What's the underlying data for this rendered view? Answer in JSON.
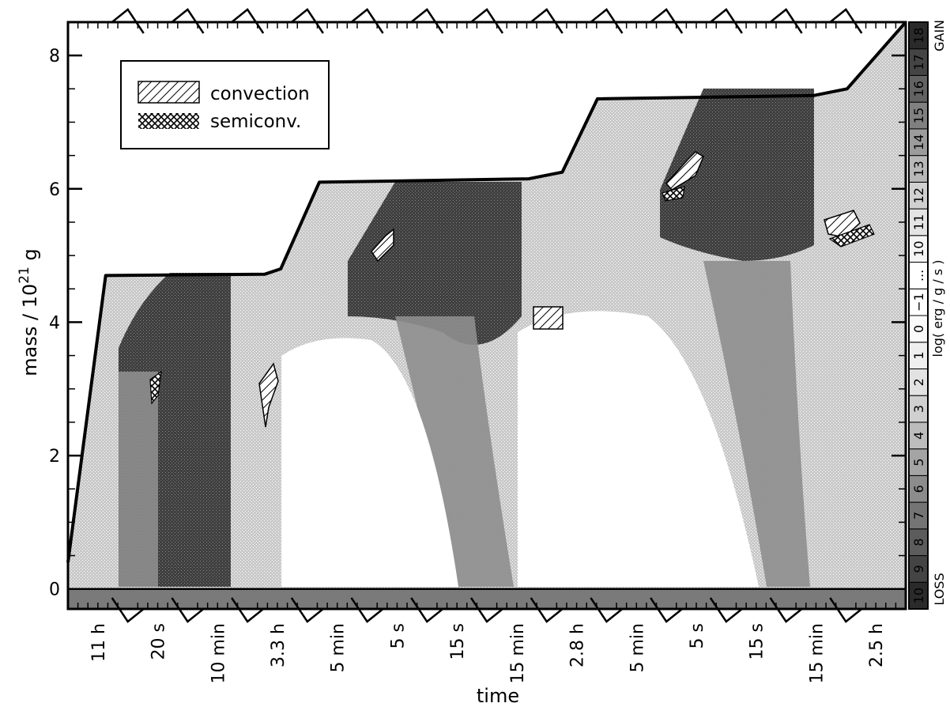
{
  "chart_data": {
    "type": "heatmap",
    "title": "",
    "xlabel": "time",
    "ylabel": "mass / 10",
    "ylabel_exponent": "21",
    "ylabel_unit": "g",
    "ylim": [
      -0.3,
      8.5
    ],
    "y_ticks": [
      "0",
      "2",
      "4",
      "6",
      "8"
    ],
    "y_tick_values": [
      0,
      2,
      4,
      6,
      8
    ],
    "x_segment_labels": [
      "11 h",
      "20 s",
      "10 min",
      "3.3 h",
      "5 min",
      "5 s",
      "15 s",
      "15 min",
      "2.8 h",
      "5 min",
      "5 s",
      "15 s",
      "15 min",
      "2.5 h"
    ],
    "colorbar": {
      "title": "log( erg / g / s )",
      "levels": [
        "10",
        "9",
        "8",
        "7",
        "6",
        "5",
        "4",
        "3",
        "2",
        "1",
        "0",
        "−1",
        "...",
        "10",
        "11",
        "12",
        "13",
        "14",
        "15",
        "16",
        "17",
        "18"
      ],
      "bottom_label": "LOSS",
      "top_label": "GAIN"
    },
    "surface_mass_profile": [
      {
        "t": 0.0,
        "m": 0.4
      },
      {
        "t": 0.045,
        "m": 4.7
      },
      {
        "t": 0.235,
        "m": 4.72
      },
      {
        "t": 0.254,
        "m": 4.8
      },
      {
        "t": 0.3,
        "m": 6.1
      },
      {
        "t": 0.55,
        "m": 6.15
      },
      {
        "t": 0.59,
        "m": 6.25
      },
      {
        "t": 0.632,
        "m": 7.35
      },
      {
        "t": 0.89,
        "m": 7.4
      },
      {
        "t": 0.93,
        "m": 7.5
      },
      {
        "t": 1.0,
        "m": 8.5
      }
    ],
    "legend": {
      "placement": "top-left",
      "entries": [
        {
          "label": "convection",
          "pattern": "hatch"
        },
        {
          "label": "semiconv.",
          "pattern": "crosshatch"
        }
      ]
    }
  }
}
